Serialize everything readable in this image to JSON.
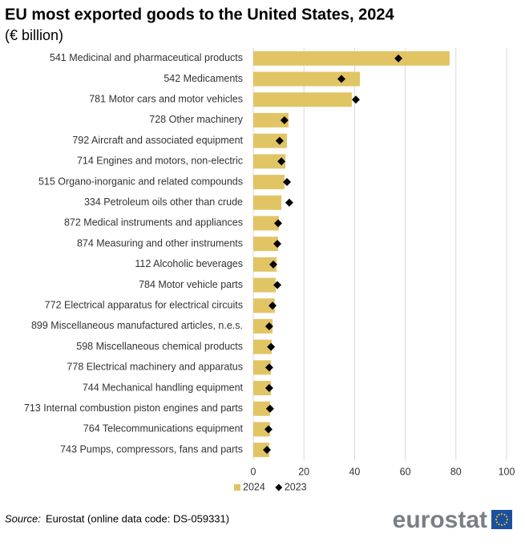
{
  "chart_data": {
    "type": "bar",
    "title": "EU most exported goods to the United States, 2024",
    "subtitle": "(€ billion)",
    "categories": [
      "541 Medicinal and pharmaceutical products",
      "542 Medicaments",
      "781 Motor cars and motor vehicles",
      "728 Other machinery",
      "792 Aircraft and associated equipment",
      "714 Engines and motors, non-electric",
      "515 Organo-inorganic and related compounds",
      "334 Petroleum oils other than crude",
      "872 Medical instruments and appliances",
      "874 Measuring and other instruments",
      "112 Alcoholic beverages",
      "784 Motor vehicle parts",
      "772 Electrical apparatus for electrical circuits",
      "899 Miscellaneous manufactured articles, n.e.s.",
      "598 Miscellaneous chemical products",
      "778 Electrical machinery and apparatus",
      "744 Mechanical handling equipment",
      "713 Internal combustion piston engines and parts",
      "764 Telecommunications equipment",
      "743 Pumps, compressors, fans and parts"
    ],
    "series": [
      {
        "name": "2024",
        "color": "#e1c565",
        "marker": "bar",
        "values": [
          77.5,
          42.1,
          38.9,
          13.9,
          13.3,
          12.7,
          12.3,
          11.1,
          10.1,
          9.8,
          9.2,
          8.9,
          8.5,
          7.6,
          7.3,
          7.0,
          7.0,
          6.6,
          6.6,
          6.3
        ]
      },
      {
        "name": "2023",
        "color": "#000000",
        "marker": "diamond",
        "values": [
          57.3,
          34.8,
          40.5,
          12.3,
          10.4,
          11.1,
          13.3,
          14.2,
          9.8,
          9.5,
          7.9,
          9.5,
          7.6,
          6.3,
          7.0,
          6.3,
          6.3,
          6.6,
          6.0,
          5.4
        ]
      }
    ],
    "xlim": [
      0,
      100
    ],
    "xticks": [
      0,
      20,
      40,
      60,
      80,
      100
    ],
    "grid": true,
    "source_label": "Source:",
    "source_text": "Eurostat (online data code: DS-059331)",
    "logo_text": "eurostat"
  }
}
